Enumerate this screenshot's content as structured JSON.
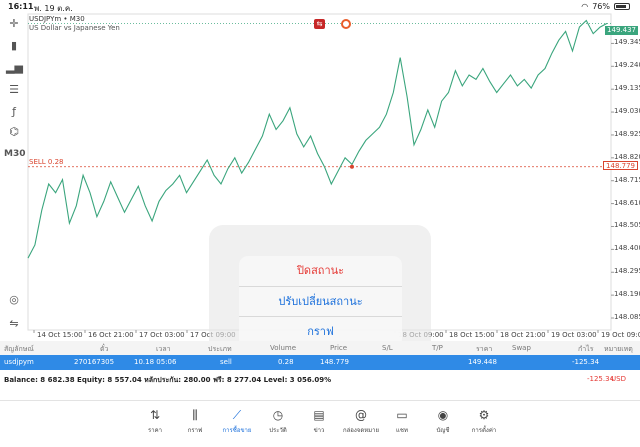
{
  "status_bar": {
    "time": "16:11",
    "date": "พ. 19 ต.ค.",
    "battery": "76%",
    "battery_level": 0.76
  },
  "chart": {
    "symbol_line": "USDJPYm • M30",
    "description": "US Dollar vs Japanese Yen",
    "timeframe": "M30",
    "current_price": "149.437",
    "sell_label": "SELL 0.28",
    "sell_price": "148.779",
    "y_ticks": [
      "149.345",
      "149.240",
      "149.135",
      "149.030",
      "148.925",
      "148.820",
      "148.715",
      "148.610",
      "148.505",
      "148.400",
      "148.295",
      "148.190",
      "148.085"
    ],
    "x_ticks": [
      "14 Oct 15:00",
      "16 Oct 21:00",
      "17 Oct 03:00",
      "17 Oct 09:00",
      "18 Oct 09:00",
      "18 Oct 15:00",
      "18 Oct 21:00",
      "19 Oct 03:00",
      "19 Oct 09:00"
    ],
    "colors": {
      "line": "#3aa57d",
      "sell": "#d9442e"
    }
  },
  "chart_data": {
    "type": "line",
    "series": [
      {
        "values": [
          148.36,
          148.42,
          148.58,
          148.7,
          148.66,
          148.72,
          148.52,
          148.6,
          148.74,
          148.66,
          148.55,
          148.62,
          148.71,
          148.64,
          148.57,
          148.63,
          148.69,
          148.6,
          148.53,
          148.62,
          148.67,
          148.7,
          148.74,
          148.66,
          148.71,
          148.76,
          148.81,
          148.74,
          148.7,
          148.77,
          148.82,
          148.75,
          148.8,
          148.86,
          148.92,
          149.02,
          148.95,
          148.99,
          149.05,
          148.93,
          148.87,
          148.92,
          148.84,
          148.78,
          148.7,
          148.76,
          148.82,
          148.79,
          148.85,
          148.9,
          148.93,
          148.96,
          149.02,
          149.12,
          149.28,
          149.1,
          148.88,
          148.95,
          149.04,
          148.96,
          149.08,
          149.12,
          149.22,
          149.15,
          149.2,
          149.18,
          149.23,
          149.17,
          149.12,
          149.16,
          149.2,
          149.15,
          149.18,
          149.14,
          149.2,
          149.23,
          149.3,
          149.36,
          149.4,
          149.31,
          149.42,
          149.45,
          149.39,
          149.42,
          149.437
        ]
      }
    ],
    "ylim": [
      148.03,
      149.48
    ]
  },
  "action_sheet": {
    "items": [
      "ปิดสถานะ",
      "ปรับเปลี่ยนสถานะ",
      "กราฟ"
    ]
  },
  "table": {
    "headers": [
      "สัญลักษณ์",
      "ตั๋ว",
      "เวลา",
      "ประเภท",
      "Volume",
      "Price",
      "S/L",
      "T/P",
      "ราคา",
      "Swap",
      "กำไร",
      "หมายเหตุ"
    ],
    "row": {
      "symbol": "usdjpym",
      "ticket": "270167305",
      "time": "10.18 05:06",
      "type": "sell",
      "volume": "0.28",
      "price": "148.779",
      "current": "149.448",
      "profit": "-125.34"
    }
  },
  "balance": {
    "text": "Balance: 8 682.38 Equity: 8 557.04 หลักประกัน: 280.00 ฟรี: 8 277.04 Level: 3 056.09%",
    "profit": "-125.34",
    "currency": "USD"
  },
  "tabbar": {
    "items": [
      {
        "label": "ราคา",
        "icon": "quotes-icon"
      },
      {
        "label": "กราฟ",
        "icon": "chart-icon"
      },
      {
        "label": "การซื้อขาย",
        "icon": "trade-icon"
      },
      {
        "label": "ประวัติ",
        "icon": "history-icon"
      },
      {
        "label": "ข่าว",
        "icon": "news-icon"
      },
      {
        "label": "กล่องจดหมาย",
        "icon": "mailbox-icon"
      },
      {
        "label": "แชท",
        "icon": "chat-icon"
      },
      {
        "label": "บัญชี",
        "icon": "account-icon"
      },
      {
        "label": "การตั้งค่า",
        "icon": "settings-icon"
      }
    ],
    "active": 2
  }
}
